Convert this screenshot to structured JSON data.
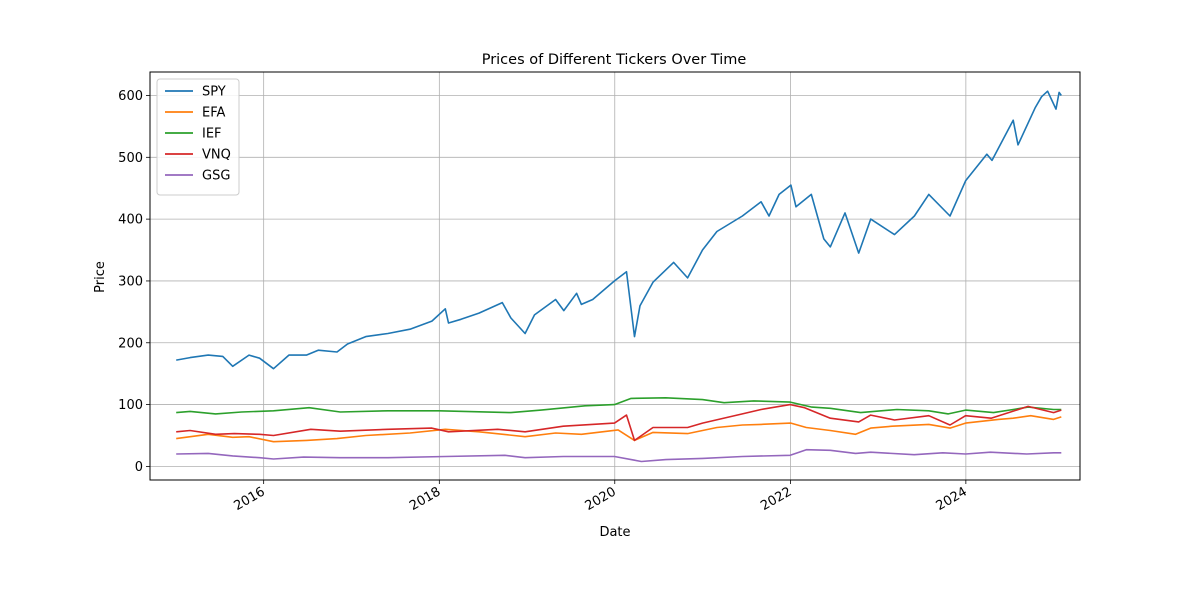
{
  "chart_data": {
    "type": "line",
    "title": "Prices of Different Tickers Over Time",
    "xlabel": "Date",
    "ylabel": "Price",
    "x_axis": "date",
    "xlim": [
      "2014-09-15",
      "2025-04-20"
    ],
    "ylim": [
      -22,
      638
    ],
    "xticks": [
      {
        "label": "2016",
        "date": "2016-01-01"
      },
      {
        "label": "2018",
        "date": "2018-01-01"
      },
      {
        "label": "2020",
        "date": "2020-01-01"
      },
      {
        "label": "2022",
        "date": "2022-01-01"
      },
      {
        "label": "2024",
        "date": "2024-01-01"
      }
    ],
    "yticks": [
      0,
      100,
      200,
      300,
      400,
      500,
      600
    ],
    "grid": true,
    "legend_position": "top-left",
    "series": [
      {
        "name": "SPY",
        "color": "#1f77b4",
        "points": [
          [
            "2015-01-02",
            172
          ],
          [
            "2015-03-01",
            176
          ],
          [
            "2015-05-15",
            180
          ],
          [
            "2015-07-15",
            178
          ],
          [
            "2015-08-25",
            162
          ],
          [
            "2015-11-01",
            180
          ],
          [
            "2015-12-15",
            175
          ],
          [
            "2016-02-11",
            158
          ],
          [
            "2016-04-15",
            180
          ],
          [
            "2016-06-27",
            180
          ],
          [
            "2016-08-15",
            188
          ],
          [
            "2016-11-01",
            185
          ],
          [
            "2016-12-15",
            198
          ],
          [
            "2017-03-01",
            210
          ],
          [
            "2017-06-01",
            215
          ],
          [
            "2017-09-01",
            222
          ],
          [
            "2017-12-01",
            235
          ],
          [
            "2018-01-26",
            255
          ],
          [
            "2018-02-08",
            232
          ],
          [
            "2018-04-01",
            238
          ],
          [
            "2018-06-15",
            248
          ],
          [
            "2018-09-20",
            265
          ],
          [
            "2018-10-26",
            240
          ],
          [
            "2018-12-24",
            215
          ],
          [
            "2019-02-01",
            245
          ],
          [
            "2019-04-30",
            270
          ],
          [
            "2019-06-03",
            252
          ],
          [
            "2019-07-26",
            280
          ],
          [
            "2019-08-15",
            262
          ],
          [
            "2019-10-01",
            270
          ],
          [
            "2019-12-31",
            300
          ],
          [
            "2020-02-19",
            315
          ],
          [
            "2020-03-23",
            210
          ],
          [
            "2020-04-15",
            260
          ],
          [
            "2020-06-08",
            298
          ],
          [
            "2020-09-02",
            330
          ],
          [
            "2020-10-30",
            305
          ],
          [
            "2020-12-31",
            350
          ],
          [
            "2021-03-01",
            380
          ],
          [
            "2021-06-15",
            405
          ],
          [
            "2021-09-01",
            428
          ],
          [
            "2021-10-04",
            405
          ],
          [
            "2021-11-15",
            440
          ],
          [
            "2022-01-03",
            455
          ],
          [
            "2022-01-24",
            420
          ],
          [
            "2022-03-29",
            440
          ],
          [
            "2022-05-20",
            368
          ],
          [
            "2022-06-16",
            355
          ],
          [
            "2022-08-16",
            410
          ],
          [
            "2022-10-12",
            345
          ],
          [
            "2022-12-01",
            400
          ],
          [
            "2023-03-10",
            375
          ],
          [
            "2023-06-01",
            405
          ],
          [
            "2023-07-31",
            440
          ],
          [
            "2023-10-27",
            405
          ],
          [
            "2023-12-31",
            462
          ],
          [
            "2024-03-28",
            505
          ],
          [
            "2024-04-19",
            495
          ],
          [
            "2024-07-16",
            560
          ],
          [
            "2024-08-05",
            520
          ],
          [
            "2024-10-15",
            580
          ],
          [
            "2024-11-11",
            598
          ],
          [
            "2024-12-06",
            607
          ],
          [
            "2025-01-10",
            578
          ],
          [
            "2025-01-23",
            605
          ],
          [
            "2025-02-01",
            600
          ]
        ]
      },
      {
        "name": "EFA",
        "color": "#ff7f0e",
        "points": [
          [
            "2015-01-02",
            45
          ],
          [
            "2015-05-15",
            52
          ],
          [
            "2015-08-25",
            47
          ],
          [
            "2015-11-01",
            48
          ],
          [
            "2016-02-11",
            40
          ],
          [
            "2016-06-27",
            42
          ],
          [
            "2016-11-01",
            45
          ],
          [
            "2017-03-01",
            50
          ],
          [
            "2017-09-01",
            54
          ],
          [
            "2018-01-26",
            60
          ],
          [
            "2018-06-15",
            56
          ],
          [
            "2018-12-24",
            48
          ],
          [
            "2019-04-30",
            54
          ],
          [
            "2019-08-15",
            52
          ],
          [
            "2020-01-15",
            59
          ],
          [
            "2020-03-23",
            42
          ],
          [
            "2020-06-08",
            55
          ],
          [
            "2020-10-30",
            53
          ],
          [
            "2021-03-01",
            63
          ],
          [
            "2021-06-15",
            67
          ],
          [
            "2021-09-01",
            68
          ],
          [
            "2022-01-03",
            70
          ],
          [
            "2022-03-08",
            63
          ],
          [
            "2022-06-16",
            58
          ],
          [
            "2022-09-29",
            52
          ],
          [
            "2022-12-01",
            62
          ],
          [
            "2023-03-01",
            65
          ],
          [
            "2023-07-31",
            68
          ],
          [
            "2023-10-27",
            62
          ],
          [
            "2023-12-31",
            70
          ],
          [
            "2024-05-15",
            76
          ],
          [
            "2024-07-16",
            78
          ],
          [
            "2024-09-27",
            82
          ],
          [
            "2024-12-31",
            76
          ],
          [
            "2025-02-01",
            80
          ]
        ]
      },
      {
        "name": "IEF",
        "color": "#2ca02c",
        "points": [
          [
            "2015-01-02",
            87
          ],
          [
            "2015-03-01",
            89
          ],
          [
            "2015-06-15",
            85
          ],
          [
            "2015-10-01",
            88
          ],
          [
            "2016-02-11",
            90
          ],
          [
            "2016-07-08",
            95
          ],
          [
            "2016-11-15",
            88
          ],
          [
            "2017-06-01",
            90
          ],
          [
            "2018-01-01",
            90
          ],
          [
            "2018-10-26",
            87
          ],
          [
            "2019-03-01",
            91
          ],
          [
            "2019-08-30",
            98
          ],
          [
            "2019-12-31",
            100
          ],
          [
            "2020-03-09",
            110
          ],
          [
            "2020-07-31",
            111
          ],
          [
            "2020-12-31",
            108
          ],
          [
            "2021-03-31",
            103
          ],
          [
            "2021-08-01",
            106
          ],
          [
            "2021-12-31",
            104
          ],
          [
            "2022-03-31",
            96
          ],
          [
            "2022-06-16",
            94
          ],
          [
            "2022-10-20",
            87
          ],
          [
            "2023-03-20",
            92
          ],
          [
            "2023-07-31",
            90
          ],
          [
            "2023-10-20",
            85
          ],
          [
            "2023-12-31",
            91
          ],
          [
            "2024-04-25",
            87
          ],
          [
            "2024-07-16",
            92
          ],
          [
            "2024-09-16",
            96
          ],
          [
            "2024-12-31",
            92
          ],
          [
            "2025-02-01",
            92
          ]
        ]
      },
      {
        "name": "VNQ",
        "color": "#d62728",
        "points": [
          [
            "2015-01-02",
            56
          ],
          [
            "2015-03-01",
            58
          ],
          [
            "2015-06-15",
            52
          ],
          [
            "2015-09-01",
            53
          ],
          [
            "2015-12-15",
            52
          ],
          [
            "2016-02-11",
            50
          ],
          [
            "2016-07-15",
            60
          ],
          [
            "2016-11-15",
            57
          ],
          [
            "2017-06-01",
            60
          ],
          [
            "2017-12-01",
            62
          ],
          [
            "2018-02-08",
            56
          ],
          [
            "2018-09-01",
            60
          ],
          [
            "2018-12-24",
            56
          ],
          [
            "2019-06-01",
            65
          ],
          [
            "2019-12-31",
            70
          ],
          [
            "2020-02-19",
            83
          ],
          [
            "2020-03-23",
            42
          ],
          [
            "2020-06-08",
            63
          ],
          [
            "2020-10-30",
            63
          ],
          [
            "2020-12-31",
            70
          ],
          [
            "2021-06-15",
            85
          ],
          [
            "2021-09-01",
            92
          ],
          [
            "2021-12-31",
            100
          ],
          [
            "2022-03-01",
            95
          ],
          [
            "2022-06-16",
            78
          ],
          [
            "2022-10-12",
            72
          ],
          [
            "2022-12-01",
            83
          ],
          [
            "2023-03-10",
            75
          ],
          [
            "2023-07-31",
            82
          ],
          [
            "2023-10-27",
            67
          ],
          [
            "2023-12-31",
            82
          ],
          [
            "2024-04-15",
            78
          ],
          [
            "2024-09-16",
            97
          ],
          [
            "2024-12-31",
            87
          ],
          [
            "2025-02-01",
            91
          ]
        ]
      },
      {
        "name": "GSG",
        "color": "#9467bd",
        "points": [
          [
            "2015-01-02",
            20
          ],
          [
            "2015-05-15",
            21
          ],
          [
            "2015-08-25",
            17
          ],
          [
            "2015-12-15",
            14
          ],
          [
            "2016-02-11",
            12
          ],
          [
            "2016-06-15",
            15
          ],
          [
            "2016-11-15",
            14
          ],
          [
            "2017-06-01",
            14
          ],
          [
            "2018-01-26",
            16
          ],
          [
            "2018-10-01",
            18
          ],
          [
            "2018-12-24",
            14
          ],
          [
            "2019-06-01",
            16
          ],
          [
            "2019-12-31",
            16
          ],
          [
            "2020-03-23",
            10
          ],
          [
            "2020-04-21",
            8
          ],
          [
            "2020-08-01",
            11
          ],
          [
            "2020-12-31",
            13
          ],
          [
            "2021-06-15",
            16
          ],
          [
            "2021-12-31",
            18
          ],
          [
            "2022-01-31",
            22
          ],
          [
            "2022-03-08",
            27
          ],
          [
            "2022-06-16",
            26
          ],
          [
            "2022-09-29",
            21
          ],
          [
            "2022-12-01",
            23
          ],
          [
            "2023-05-31",
            19
          ],
          [
            "2023-09-27",
            22
          ],
          [
            "2023-12-31",
            20
          ],
          [
            "2024-04-12",
            23
          ],
          [
            "2024-09-10",
            20
          ],
          [
            "2024-12-31",
            22
          ],
          [
            "2025-02-01",
            22
          ]
        ]
      }
    ]
  }
}
